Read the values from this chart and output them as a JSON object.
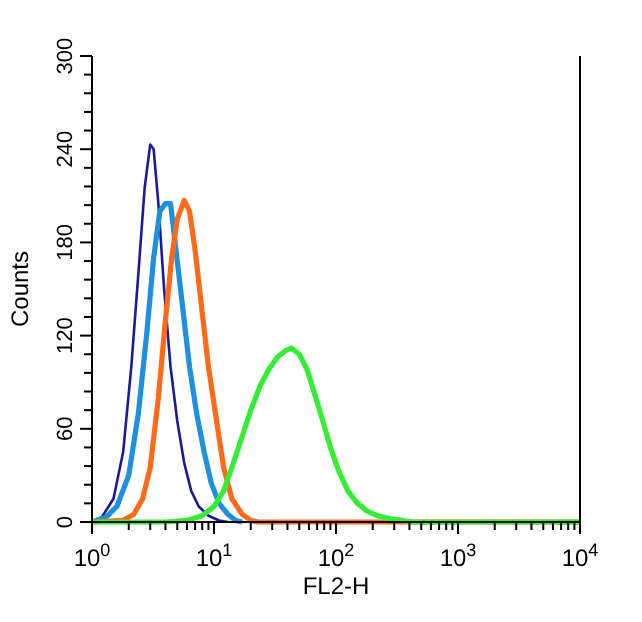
{
  "chart_data": {
    "type": "line",
    "xlabel": "FL2-H",
    "ylabel": "Counts",
    "log": "x",
    "xlim": [
      1,
      10000
    ],
    "ylim": [
      0,
      300
    ],
    "xticks": [
      {
        "value": 1,
        "label": "10$^{0}$"
      },
      {
        "value": 2,
        "label": null
      },
      {
        "value": 3,
        "label": null
      },
      {
        "value": 4,
        "label": null
      },
      {
        "value": 5,
        "label": null
      },
      {
        "value": 6,
        "label": null
      },
      {
        "value": 7,
        "label": null
      },
      {
        "value": 8,
        "label": null
      },
      {
        "value": 9,
        "label": null
      },
      {
        "value": 10,
        "label": "10$^{1}$"
      },
      {
        "value": 20,
        "label": null
      },
      {
        "value": 30,
        "label": null
      },
      {
        "value": 40,
        "label": null
      },
      {
        "value": 50,
        "label": null
      },
      {
        "value": 60,
        "label": null
      },
      {
        "value": 70,
        "label": null
      },
      {
        "value": 80,
        "label": null
      },
      {
        "value": 90,
        "label": null
      },
      {
        "value": 100,
        "label": "10$^{2}$"
      },
      {
        "value": 200,
        "label": null
      },
      {
        "value": 300,
        "label": null
      },
      {
        "value": 400,
        "label": null
      },
      {
        "value": 500,
        "label": null
      },
      {
        "value": 600,
        "label": null
      },
      {
        "value": 700,
        "label": null
      },
      {
        "value": 800,
        "label": null
      },
      {
        "value": 900,
        "label": null
      },
      {
        "value": 1000,
        "label": "10$^{3}$"
      },
      {
        "value": 2000,
        "label": null
      },
      {
        "value": 3000,
        "label": null
      },
      {
        "value": 4000,
        "label": null
      },
      {
        "value": 5000,
        "label": null
      },
      {
        "value": 6000,
        "label": null
      },
      {
        "value": 7000,
        "label": null
      },
      {
        "value": 8000,
        "label": null
      },
      {
        "value": 9000,
        "label": null
      },
      {
        "value": 10000,
        "label": "10$^{4}$"
      }
    ],
    "yticks": [
      0,
      {
        "value": 12,
        "label": null
      },
      {
        "value": 24,
        "label": null
      },
      {
        "value": 36,
        "label": null
      },
      {
        "value": 48,
        "label": null
      },
      60,
      {
        "value": 72,
        "label": null
      },
      {
        "value": 84,
        "label": null
      },
      {
        "value": 96,
        "label": null
      },
      {
        "value": 108,
        "label": null
      },
      120,
      {
        "value": 132,
        "label": null
      },
      {
        "value": 144,
        "label": null
      },
      {
        "value": 156,
        "label": null
      },
      {
        "value": 168,
        "label": null
      },
      180,
      {
        "value": 192,
        "label": null
      },
      {
        "value": 204,
        "label": null
      },
      {
        "value": 216,
        "label": null
      },
      {
        "value": 228,
        "label": null
      },
      240,
      {
        "value": 252,
        "label": null
      },
      {
        "value": 264,
        "label": null
      },
      {
        "value": 276,
        "label": null
      },
      {
        "value": 288,
        "label": null
      },
      300
    ],
    "grid": false,
    "marker": "none",
    "line_style": "solid",
    "series": [
      {
        "color": "#1a1aa0",
        "x": [
          1,
          1.2,
          1.5,
          1.8,
          2.1,
          2.4,
          2.7,
          3.0,
          3.2,
          3.5,
          3.9,
          4.4,
          5.0,
          5.7,
          6.5,
          7.5,
          9,
          11,
          13
        ],
        "values": [
          0,
          3,
          15,
          45,
          100,
          160,
          215,
          243,
          240,
          205,
          150,
          100,
          65,
          38,
          20,
          10,
          4,
          1,
          0
        ]
      },
      {
        "color": "#1e90e0",
        "x": [
          1,
          1.3,
          1.6,
          2.0,
          2.4,
          2.8,
          3.2,
          3.6,
          4.0,
          4.4,
          4.8,
          5.5,
          6.3,
          7.2,
          8.3,
          9.5,
          11,
          13,
          15,
          17
        ],
        "values": [
          0,
          3,
          10,
          30,
          70,
          120,
          170,
          200,
          205,
          205,
          180,
          140,
          100,
          70,
          45,
          25,
          12,
          5,
          1,
          0
        ]
      },
      {
        "color": "#ff6a1a",
        "x": [
          1,
          1.8,
          2.2,
          2.6,
          3.0,
          3.5,
          4.0,
          4.5,
          5.0,
          5.7,
          6.3,
          7.0,
          8.0,
          9.0,
          10.5,
          12,
          14,
          17,
          20,
          23,
          10000
        ],
        "values": [
          0,
          1,
          5,
          15,
          35,
          80,
          130,
          170,
          195,
          207,
          200,
          175,
          135,
          100,
          65,
          35,
          15,
          5,
          1,
          0,
          0
        ]
      },
      {
        "color": "#33ee33",
        "x": [
          1,
          4,
          6,
          8,
          10,
          12,
          14,
          17,
          20,
          24,
          28,
          33,
          38,
          43,
          50,
          58,
          67,
          78,
          90,
          105,
          125,
          150,
          180,
          220,
          280,
          350,
          420,
          10000
        ],
        "values": [
          0,
          0,
          1,
          4,
          10,
          20,
          35,
          55,
          72,
          88,
          98,
          106,
          110,
          112,
          108,
          98,
          82,
          65,
          48,
          33,
          20,
          12,
          7,
          4,
          2,
          1,
          0,
          0
        ]
      }
    ]
  }
}
